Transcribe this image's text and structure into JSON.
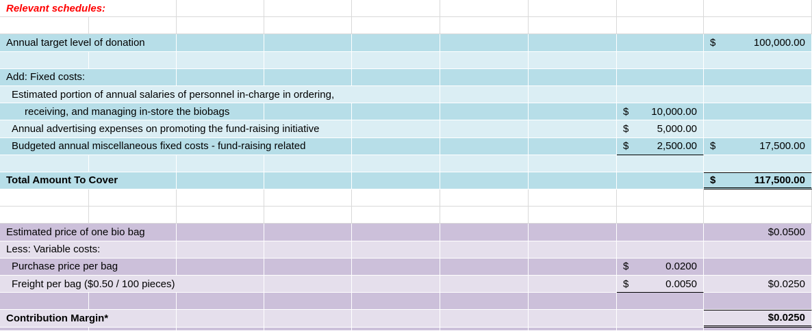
{
  "colors": {
    "title_red": "#ff0000",
    "blue_light": "#dbeef4",
    "blue_medium": "#b7dee8",
    "purple_light": "#e5dfec",
    "purple_medium": "#ccc0da",
    "gridline_gray": "#d9d9d9",
    "border_black": "#000000"
  },
  "columns": [
    130,
    128,
    128,
    128,
    129,
    129,
    129,
    127,
    158
  ],
  "rows": [
    {
      "fill": "white",
      "label": {
        "text": "Relevant schedules:",
        "style": "title",
        "span": 2
      }
    },
    {
      "fill": "white"
    },
    {
      "fill": "blue2",
      "label": {
        "text": "Annual target level of donation",
        "span": 2
      },
      "amountI": {
        "fmt": "acct",
        "cur": "$",
        "num": "100,000.00"
      }
    },
    {
      "fill": "blue1"
    },
    {
      "fill": "blue2",
      "label": {
        "text": "Add: Fixed costs:",
        "span": 2
      }
    },
    {
      "fill": "blue1",
      "label": {
        "text": "Estimated portion of annual salaries of personnel in-charge in ordering,",
        "indent": 1,
        "span": 5
      }
    },
    {
      "fill": "blue2",
      "label": {
        "text": "receiving, and managing in-store the biobags",
        "indent": 2,
        "span": 3
      },
      "amountH": {
        "fmt": "acct",
        "cur": "$",
        "num": "10,000.00"
      }
    },
    {
      "fill": "blue1",
      "label": {
        "text": "Annual advertising expenses on promoting the fund-raising initiative",
        "indent": 1,
        "span": 4
      },
      "amountH": {
        "fmt": "acct",
        "cur": "$",
        "num": "5,000.00"
      }
    },
    {
      "fill": "blue2",
      "label": {
        "text": "Budgeted annual miscellaneous fixed costs - fund-raising related",
        "indent": 1,
        "span": 4
      },
      "amountH": {
        "fmt": "acct",
        "cur": "$",
        "num": "2,500.00",
        "border": "sum"
      },
      "amountI": {
        "fmt": "acct",
        "cur": "$",
        "num": "17,500.00"
      }
    },
    {
      "fill": "blue1"
    },
    {
      "fill": "blue2",
      "label": {
        "text": "Total Amount To Cover",
        "bold": true,
        "span": 2
      },
      "amountI": {
        "fmt": "acct",
        "cur": "$",
        "num": "117,500.00",
        "bold": true,
        "border": "total"
      }
    },
    {
      "fill": "white"
    },
    {
      "fill": "white"
    },
    {
      "fill": "purple2",
      "label": {
        "text": "Estimated price of one bio bag",
        "span": 2
      },
      "amountI": {
        "fmt": "plain",
        "num": "$0.0500"
      }
    },
    {
      "fill": "purple1",
      "label": {
        "text": "Less: Variable costs:",
        "span": 2
      }
    },
    {
      "fill": "purple2",
      "label": {
        "text": "Purchase price per bag",
        "indent": 1,
        "span": 2
      },
      "amountH": {
        "fmt": "acct",
        "cur": "$",
        "num": "0.0200"
      }
    },
    {
      "fill": "purple1",
      "label": {
        "text": "Freight per bag ($0.50 / 100 pieces)",
        "indent": 1,
        "span": 3
      },
      "amountH": {
        "fmt": "acct",
        "cur": "$",
        "num": "0.0050",
        "border": "sum"
      },
      "amountI": {
        "fmt": "plain",
        "num": "$0.0250"
      }
    },
    {
      "fill": "purple2"
    },
    {
      "fill": "purple1",
      "label": {
        "text": "Contribution Margin*",
        "bold": true,
        "span": 2
      },
      "amountI": {
        "fmt": "plain",
        "num": "$0.0250",
        "bold": true,
        "border": "total"
      }
    },
    {
      "fill": "purple2",
      "partial": true
    }
  ]
}
